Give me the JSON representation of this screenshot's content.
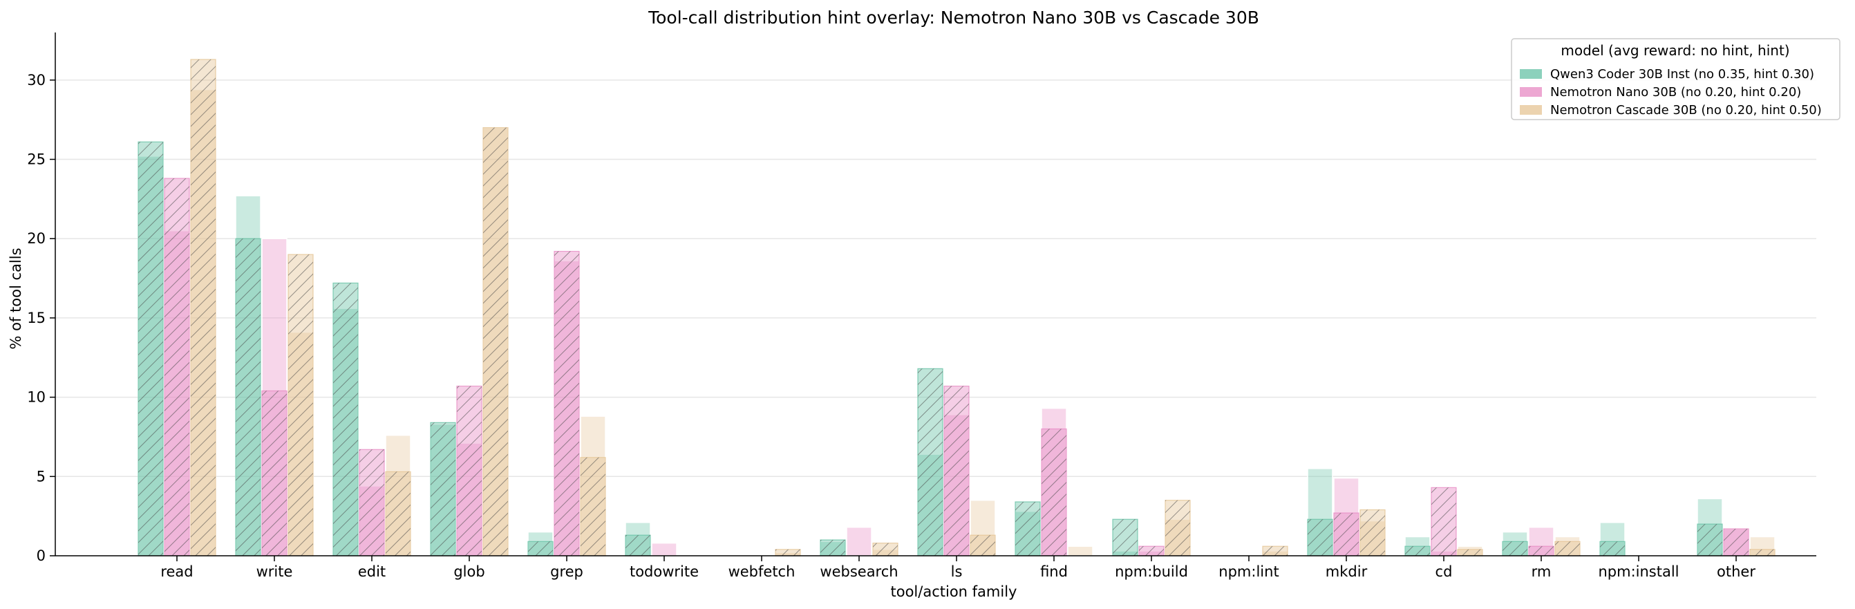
{
  "chart_data": {
    "type": "bar",
    "title": "Tool-call distribution hint overlay: Nemotron Nano 30B vs Cascade 30B",
    "xlabel": "tool/action family",
    "ylabel": "% of tool calls",
    "ylim": [
      0,
      33
    ],
    "yticks": [
      0,
      5,
      10,
      15,
      20,
      25,
      30
    ],
    "grid": "horizontal",
    "legend": {
      "title": "model (avg reward: no hint, hint)",
      "placement": "top-right"
    },
    "categories": [
      "read",
      "write",
      "edit",
      "glob",
      "grep",
      "todowrite",
      "webfetch",
      "websearch",
      "ls",
      "find",
      "npm:build",
      "npm:lint",
      "mkdir",
      "cd",
      "rm",
      "npm:install",
      "other"
    ],
    "series": [
      {
        "name": "Qwen3 Coder 30B Inst (no 0.35, hint 0.30)",
        "color": "#66c2a5",
        "no_hint": [
          25.2,
          22.7,
          15.6,
          8.3,
          1.5,
          2.1,
          0,
          0.9,
          6.4,
          2.8,
          0.3,
          0,
          5.5,
          1.2,
          1.5,
          2.1,
          3.6
        ],
        "hint": [
          26.1,
          20.0,
          17.2,
          8.4,
          0.9,
          1.3,
          0,
          1.0,
          11.8,
          3.4,
          2.3,
          0,
          2.3,
          0.6,
          0.9,
          0.9,
          2.0
        ]
      },
      {
        "name": "Nemotron Nano 30B (no 0.20, hint 0.20)",
        "color": "#e78ac3",
        "no_hint": [
          20.5,
          20.0,
          4.4,
          7.1,
          18.6,
          0.8,
          0,
          1.8,
          8.9,
          9.3,
          0.3,
          0,
          4.9,
          0.3,
          1.8,
          0,
          1.7
        ],
        "hint": [
          23.8,
          10.4,
          6.7,
          10.7,
          19.2,
          0,
          0,
          0,
          10.7,
          8.0,
          0.6,
          0,
          2.7,
          4.3,
          0.6,
          0,
          1.7
        ]
      },
      {
        "name": "Nemotron Cascade 30B (no 0.20, hint 0.50)",
        "color": "#e5c494",
        "no_hint": [
          29.4,
          14.1,
          7.6,
          27.0,
          8.8,
          0,
          0.2,
          0.4,
          3.5,
          0.6,
          2.3,
          0.3,
          2.2,
          0.6,
          1.2,
          0,
          1.2
        ],
        "hint": [
          31.3,
          19.0,
          5.3,
          27.0,
          6.2,
          0,
          0.4,
          0.8,
          1.3,
          0,
          3.5,
          0.6,
          2.9,
          0.4,
          0.9,
          0,
          0.4
        ]
      }
    ]
  }
}
